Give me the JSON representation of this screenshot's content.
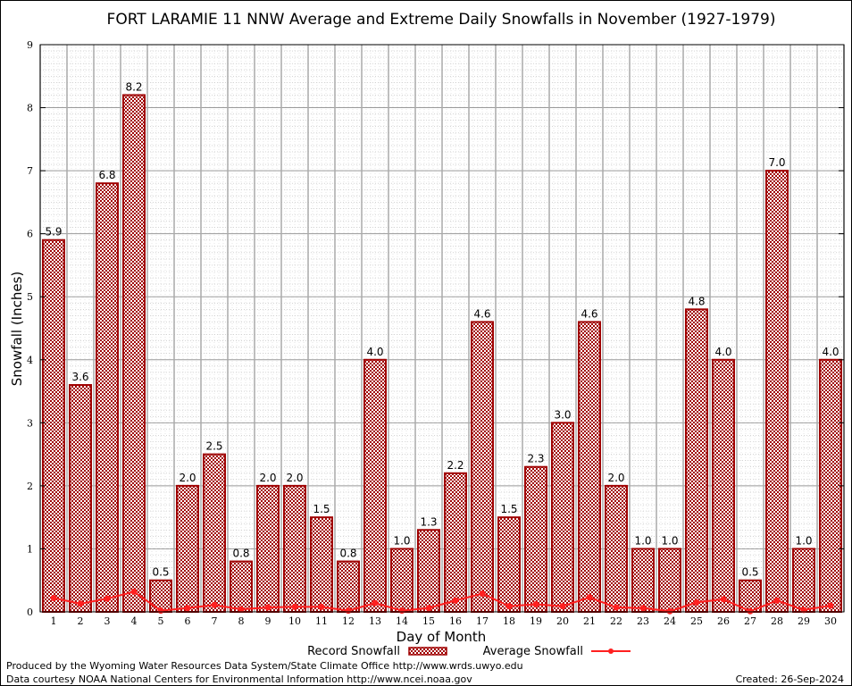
{
  "chart_data": {
    "type": "bar",
    "title": "FORT LARAMIE 11 NNW Average and Extreme Daily Snowfalls in November (1927-1979)",
    "xlabel": "Day of Month",
    "ylabel": "Snowfall (Inches)",
    "ylim": [
      0,
      9
    ],
    "yticks": [
      "0",
      "1",
      "2",
      "3",
      "4",
      "5",
      "6",
      "7",
      "8",
      "9"
    ],
    "grid": true,
    "legend_placement": "bottom",
    "categories": [
      "1",
      "2",
      "3",
      "4",
      "5",
      "6",
      "7",
      "8",
      "9",
      "10",
      "11",
      "12",
      "13",
      "14",
      "15",
      "16",
      "17",
      "18",
      "19",
      "20",
      "21",
      "22",
      "23",
      "24",
      "25",
      "26",
      "27",
      "28",
      "29",
      "30"
    ],
    "series": [
      {
        "name": "Record Snowfall",
        "type": "bar",
        "color": "#a00000",
        "values": [
          5.9,
          3.6,
          6.8,
          8.2,
          0.5,
          2.0,
          2.5,
          0.8,
          2.0,
          2.0,
          1.5,
          0.8,
          4.0,
          1.0,
          1.3,
          2.2,
          4.6,
          1.5,
          2.3,
          3.0,
          4.6,
          2.0,
          1.0,
          1.0,
          4.8,
          4.0,
          0.5,
          7.0,
          1.0,
          4.0
        ],
        "labels": [
          "5.9",
          "3.6",
          "6.8",
          "8.2",
          "0.5",
          "2.0",
          "2.5",
          "0.8",
          "2.0",
          "2.0",
          "1.5",
          "0.8",
          "4.0",
          "1.0",
          "1.3",
          "2.2",
          "4.6",
          "1.5",
          "2.3",
          "3.0",
          "4.6",
          "2.0",
          "1.0",
          "1.0",
          "4.8",
          "4.0",
          "0.5",
          "7.0",
          "1.0",
          "4.0"
        ]
      },
      {
        "name": "Average Snowfall",
        "type": "line",
        "color": "#ff2020",
        "values": [
          0.22,
          0.13,
          0.21,
          0.32,
          0.02,
          0.06,
          0.11,
          0.04,
          0.07,
          0.08,
          0.08,
          0.02,
          0.14,
          0.02,
          0.06,
          0.18,
          0.29,
          0.09,
          0.12,
          0.09,
          0.23,
          0.07,
          0.06,
          0.01,
          0.15,
          0.2,
          0.01,
          0.18,
          0.03,
          0.1
        ]
      }
    ]
  },
  "footer": {
    "line1": "Produced by the Wyoming Water Resources Data System/State Climate Office http://www.wrds.uwyo.edu",
    "line2": "Data courtesy NOAA National Centers for Environmental Information http://www.ncei.noaa.gov",
    "created": "Created: 26-Sep-2024"
  }
}
